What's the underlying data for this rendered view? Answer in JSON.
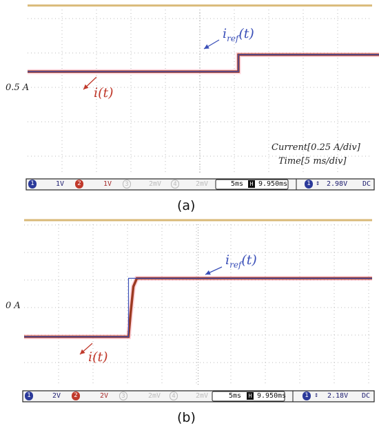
{
  "chart_data": [
    {
      "type": "line",
      "panel_label": "(a)",
      "y_annotation": "0.5 A",
      "scale_note_1": "Current[0.25 A/div]",
      "scale_note_2": "Time[5 ms/div]",
      "x_unit": "ms",
      "y_unit": "A",
      "xlim": [
        -15,
        20
      ],
      "series": [
        {
          "name": "i_ref(t)",
          "color": "#3a4fb8",
          "x": [
            -15,
            0,
            0,
            20
          ],
          "y": [
            0.375,
            0.375,
            0.5,
            0.5
          ]
        },
        {
          "name": "i(t)",
          "color": "#c0392b",
          "x": [
            -15,
            0,
            0,
            20
          ],
          "y": [
            0.375,
            0.375,
            0.5,
            0.5
          ]
        }
      ],
      "scope_bar": {
        "ch1": "1V",
        "ch2": "1V",
        "ch3": "2mV",
        "ch4": "2mV",
        "timebase": "5ms",
        "delay": "9.950ms",
        "trigger": "2.98V",
        "coupling": "DC"
      }
    },
    {
      "type": "line",
      "panel_label": "(b)",
      "y_annotation": "0 A",
      "x_unit": "ms",
      "y_unit": "A",
      "xlim": [
        -15,
        35
      ],
      "series": [
        {
          "name": "i_ref(t)",
          "color": "#3a4fb8",
          "x": [
            -15,
            0,
            0,
            35
          ],
          "y": [
            -0.25,
            -0.25,
            0.25,
            0.25
          ]
        },
        {
          "name": "i(t)",
          "color": "#c0392b",
          "x": [
            -15,
            0,
            0.3,
            0.7,
            1.2,
            35
          ],
          "y": [
            -0.25,
            -0.25,
            -0.05,
            0.18,
            0.25,
            0.25
          ]
        }
      ],
      "scope_bar": {
        "ch1": "2V",
        "ch2": "2V",
        "ch3": "2mV",
        "ch4": "2mV",
        "timebase": "5ms",
        "delay": "9.950ms",
        "trigger": "2.18V",
        "coupling": "DC"
      }
    }
  ],
  "labels": {
    "a_iref_main": "i",
    "a_iref_sub": "ref",
    "a_iref_arg": "(t)",
    "a_i": "i(t)",
    "b_iref_main": "i",
    "b_iref_sub": "ref",
    "b_iref_arg": "(t)",
    "b_i": "i(t)"
  }
}
